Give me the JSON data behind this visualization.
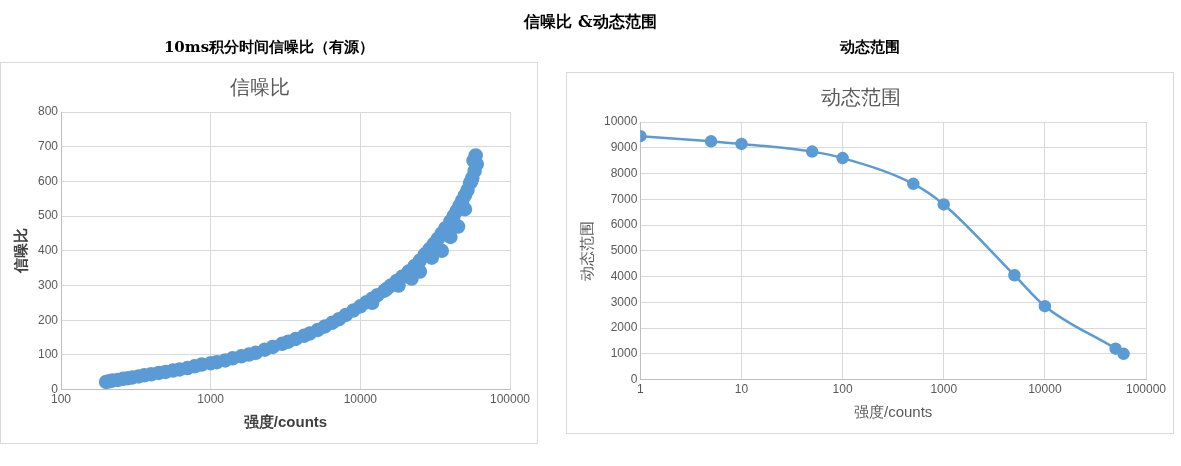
{
  "chart_data": [
    {
      "type": "scatter",
      "title": "10ms积分时间信噪比（有源）",
      "subtitle": "信噪比",
      "xlabel": "强度/counts",
      "ylabel": "信噪比",
      "annotations": [
        "信噪比 &动态范围"
      ],
      "log": "x",
      "grid": true,
      "legend": false,
      "marker": "circle",
      "xlim": [
        100,
        100000
      ],
      "xticks": [
        100,
        1000,
        10000,
        100000
      ],
      "ylim": [
        0,
        800
      ],
      "yticks": [
        0,
        100,
        200,
        300,
        400,
        500,
        600,
        700,
        800
      ],
      "series": [
        {
          "color": "#5b9bd5",
          "x": [
            200,
            210,
            220,
            240,
            260,
            280,
            300,
            330,
            360,
            400,
            450,
            500,
            560,
            620,
            700,
            780,
            870,
            1000,
            1100,
            1250,
            1400,
            1600,
            1800,
            2000,
            2300,
            2600,
            3000,
            3300,
            3700,
            4200,
            4600,
            5200,
            5800,
            6500,
            7200,
            8000,
            9000,
            10000,
            11000,
            12000,
            13000,
            14500,
            16000,
            17500,
            19000,
            21000,
            23000,
            25000,
            27000,
            29000,
            31000,
            33000,
            35000,
            37000,
            40000,
            42000,
            44000,
            46000,
            48000,
            50000,
            52000,
            54000,
            56000,
            58000,
            60000,
            59000,
            57000,
            55000,
            50000,
            45000,
            40000,
            35000,
            30000,
            25000,
            22000,
            18000,
            15000,
            12000
          ],
          "values": [
            22,
            24,
            26,
            28,
            31,
            33,
            35,
            38,
            41,
            44,
            48,
            51,
            55,
            58,
            62,
            67,
            72,
            76,
            79,
            84,
            90,
            96,
            101,
            106,
            115,
            123,
            132,
            138,
            146,
            155,
            162,
            172,
            182,
            193,
            203,
            215,
            228,
            240,
            252,
            262,
            272,
            285,
            300,
            313,
            325,
            340,
            356,
            372,
            390,
            405,
            420,
            435,
            450,
            465,
            485,
            500,
            515,
            530,
            545,
            560,
            575,
            595,
            610,
            630,
            650,
            675,
            660,
            600,
            520,
            470,
            440,
            400,
            380,
            340,
            320,
            300,
            290,
            250
          ]
        }
      ]
    },
    {
      "type": "line",
      "title": "动态范围",
      "subtitle": "动态范围",
      "xlabel": "强度/counts",
      "ylabel": "动态范围",
      "log": "x",
      "grid": true,
      "legend": false,
      "marker": "circle",
      "xlim": [
        1,
        100000
      ],
      "xticks": [
        1,
        10,
        100,
        1000,
        10000,
        100000
      ],
      "ylim": [
        0,
        10000
      ],
      "yticks": [
        0,
        1000,
        2000,
        3000,
        4000,
        5000,
        6000,
        7000,
        8000,
        9000,
        10000
      ],
      "series": [
        {
          "color": "#5b9bd5",
          "x": [
            1,
            5,
            10,
            50,
            100,
            500,
            1000,
            5000,
            10000,
            50000,
            60000
          ],
          "values": [
            9450,
            9250,
            9150,
            8850,
            8600,
            7600,
            6800,
            4050,
            2850,
            1200,
            1000
          ]
        }
      ]
    }
  ]
}
